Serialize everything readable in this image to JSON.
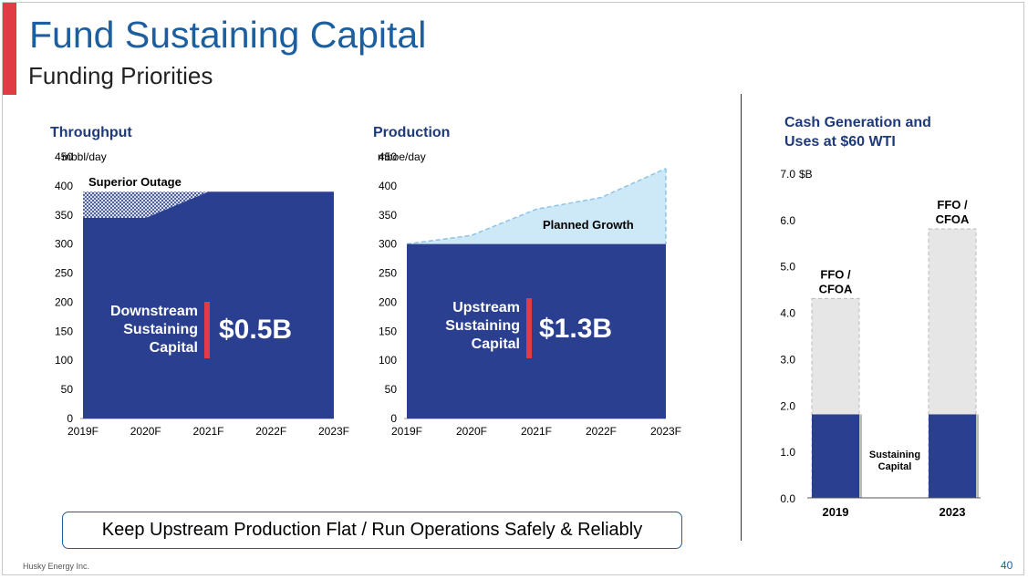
{
  "slide": {
    "title": "Fund Sustaining Capital",
    "subtitle": "Funding Priorities",
    "callout": "Keep Upstream Production Flat / Run Operations Safely & Reliably",
    "footer": "Husky Energy Inc.",
    "page_number": "40"
  },
  "colors": {
    "navy": "#2a3f8f",
    "accent_red": "#e03c46",
    "planned_fill": "#cde9f7",
    "planned_line": "#8fc3e6",
    "grey_bar": "#e6e6e6",
    "title_blue": "#1c5fa0"
  },
  "chart_data": [
    {
      "type": "area",
      "title": "Throughput",
      "unit_label": "mbbl/day",
      "categories": [
        "2019F",
        "2020F",
        "2021F",
        "2022F",
        "2023F"
      ],
      "x_positions": [
        0,
        1,
        2,
        2.2,
        3,
        4
      ],
      "series": [
        {
          "name": "Downstream Sustaining Capital",
          "x": [
            0,
            1,
            2,
            3,
            4
          ],
          "values": [
            345,
            345,
            390,
            390,
            390
          ]
        },
        {
          "name": "Superior Outage",
          "x": [
            0,
            1,
            2
          ],
          "values": [
            390,
            390,
            390
          ]
        }
      ],
      "ylim": [
        0,
        450
      ],
      "yticks": [
        0,
        50,
        100,
        150,
        200,
        250,
        300,
        350,
        400,
        450
      ],
      "annotations": {
        "outage_label": "Superior Outage",
        "inner_label_lines": [
          "Downstream",
          "Sustaining",
          "Capital"
        ],
        "value": "$0.5B"
      }
    },
    {
      "type": "area",
      "title": "Production",
      "unit_label": "mboe/day",
      "categories": [
        "2019F",
        "2020F",
        "2021F",
        "2022F",
        "2023F"
      ],
      "series": [
        {
          "name": "Upstream Sustaining Capital",
          "x": [
            0,
            1,
            2,
            3,
            4
          ],
          "values": [
            300,
            300,
            300,
            300,
            300
          ]
        },
        {
          "name": "Planned Growth",
          "x": [
            0,
            1,
            2,
            3,
            4
          ],
          "values": [
            300,
            315,
            360,
            380,
            430
          ]
        }
      ],
      "ylim": [
        0,
        450
      ],
      "yticks": [
        0,
        50,
        100,
        150,
        200,
        250,
        300,
        350,
        400,
        450
      ],
      "annotations": {
        "growth_label": "Planned Growth",
        "inner_label_lines": [
          "Upstream",
          "Sustaining",
          "Capital"
        ],
        "value": "$1.3B"
      }
    },
    {
      "type": "bar",
      "title_lines": [
        "Cash Generation and",
        "Uses at $60 WTI"
      ],
      "unit_label": "$B",
      "categories": [
        "2019",
        "2023"
      ],
      "series": [
        {
          "name": "Sustaining Capital",
          "values": [
            1.8,
            1.8
          ]
        },
        {
          "name": "FFO / CFOA",
          "values": [
            4.3,
            5.8
          ]
        }
      ],
      "ylim": [
        0,
        7.0
      ],
      "yticks": [
        "0.0",
        "1.0",
        "2.0",
        "3.0",
        "4.0",
        "5.0",
        "6.0",
        "7.0"
      ],
      "annotations": {
        "bar_top_label_lines": [
          "FFO /",
          "CFOA"
        ],
        "sustaining_label_lines": [
          "Sustaining",
          "Capital"
        ]
      }
    }
  ]
}
